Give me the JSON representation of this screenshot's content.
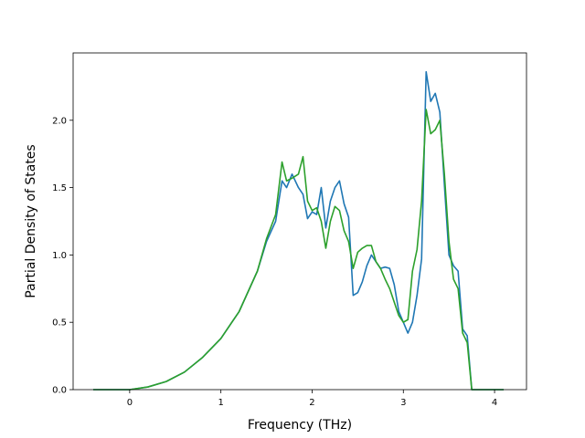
{
  "chart_data": {
    "type": "line",
    "title": "",
    "xlabel": "Frequency (THz)",
    "ylabel": "Partial Density of States",
    "xlim": [
      -0.62,
      4.35
    ],
    "ylim": [
      0.0,
      2.5
    ],
    "xticks": [
      0,
      1,
      2,
      3,
      4
    ],
    "yticks": [
      0.0,
      0.5,
      1.0,
      1.5,
      2.0
    ],
    "xtick_labels": [
      "0",
      "1",
      "2",
      "3",
      "4"
    ],
    "ytick_labels": [
      "0.0",
      "0.5",
      "1.0",
      "1.5",
      "2.0"
    ],
    "grid": false,
    "legend": "none",
    "series": [
      {
        "color": "#1f77b4",
        "x": [
          -0.4,
          0.0,
          0.2,
          0.4,
          0.6,
          0.8,
          1.0,
          1.2,
          1.4,
          1.5,
          1.6,
          1.67,
          1.72,
          1.78,
          1.85,
          1.9,
          1.95,
          2.0,
          2.05,
          2.1,
          2.15,
          2.2,
          2.25,
          2.3,
          2.35,
          2.4,
          2.45,
          2.5,
          2.55,
          2.6,
          2.65,
          2.7,
          2.75,
          2.8,
          2.85,
          2.9,
          2.95,
          3.0,
          3.05,
          3.1,
          3.15,
          3.2,
          3.25,
          3.3,
          3.35,
          3.4,
          3.45,
          3.5,
          3.55,
          3.6,
          3.65,
          3.7,
          3.75,
          3.8,
          4.1
        ],
        "y": [
          0.0,
          0.0,
          0.02,
          0.06,
          0.13,
          0.24,
          0.38,
          0.58,
          0.88,
          1.1,
          1.25,
          1.55,
          1.5,
          1.6,
          1.5,
          1.45,
          1.27,
          1.32,
          1.3,
          1.5,
          1.2,
          1.4,
          1.5,
          1.55,
          1.38,
          1.28,
          0.7,
          0.72,
          0.8,
          0.92,
          1.0,
          0.95,
          0.9,
          0.91,
          0.9,
          0.78,
          0.58,
          0.5,
          0.42,
          0.5,
          0.7,
          0.97,
          2.36,
          2.14,
          2.2,
          2.06,
          1.52,
          1.0,
          0.92,
          0.88,
          0.45,
          0.4,
          0.0,
          0.0,
          0.0
        ]
      },
      {
        "color": "#2ca02c",
        "x": [
          -0.4,
          0.0,
          0.2,
          0.4,
          0.6,
          0.8,
          1.0,
          1.2,
          1.4,
          1.5,
          1.6,
          1.67,
          1.72,
          1.78,
          1.85,
          1.9,
          1.95,
          2.0,
          2.05,
          2.1,
          2.15,
          2.2,
          2.25,
          2.3,
          2.35,
          2.4,
          2.45,
          2.5,
          2.55,
          2.6,
          2.65,
          2.7,
          2.75,
          2.8,
          2.85,
          2.9,
          2.95,
          3.0,
          3.05,
          3.1,
          3.15,
          3.2,
          3.25,
          3.3,
          3.35,
          3.4,
          3.45,
          3.5,
          3.55,
          3.6,
          3.65,
          3.7,
          3.75,
          3.8,
          4.1
        ],
        "y": [
          0.0,
          0.0,
          0.02,
          0.06,
          0.13,
          0.24,
          0.38,
          0.58,
          0.88,
          1.12,
          1.3,
          1.69,
          1.55,
          1.57,
          1.6,
          1.73,
          1.4,
          1.33,
          1.35,
          1.25,
          1.05,
          1.25,
          1.36,
          1.33,
          1.18,
          1.1,
          0.9,
          1.02,
          1.05,
          1.07,
          1.07,
          0.95,
          0.9,
          0.82,
          0.75,
          0.65,
          0.55,
          0.5,
          0.52,
          0.88,
          1.04,
          1.4,
          2.08,
          1.9,
          1.93,
          2.0,
          1.6,
          1.1,
          0.82,
          0.75,
          0.42,
          0.35,
          0.0,
          0.0,
          0.0
        ]
      }
    ]
  }
}
